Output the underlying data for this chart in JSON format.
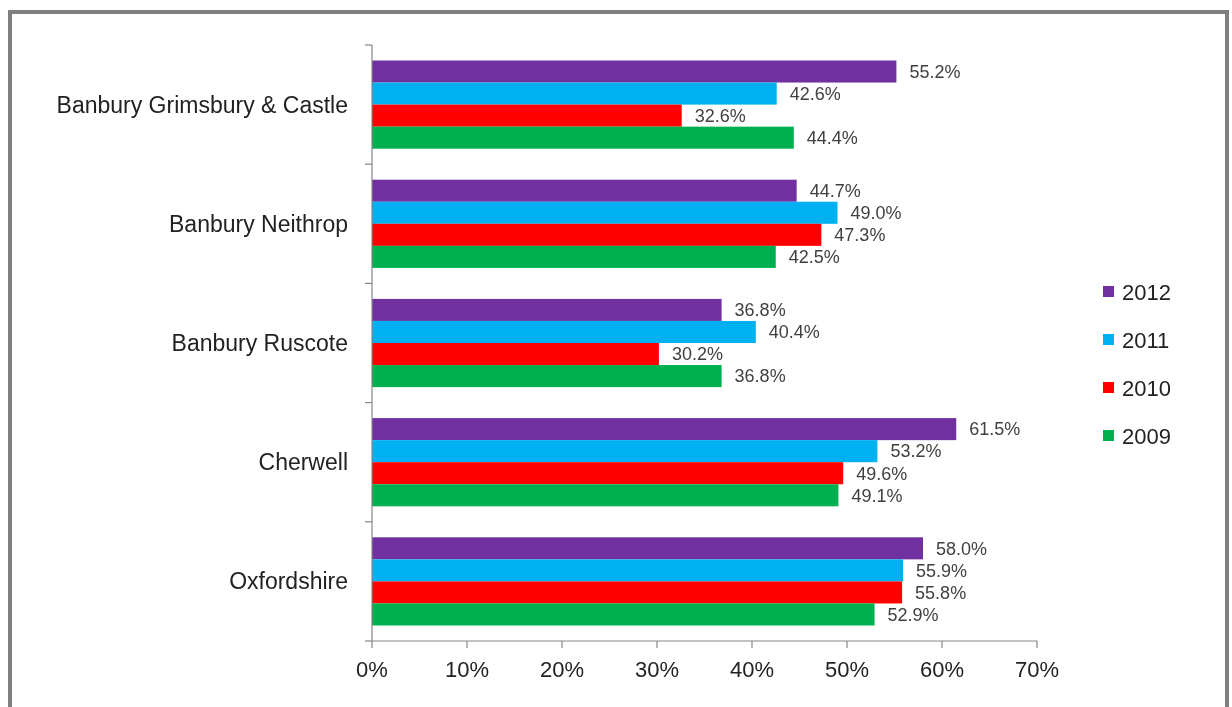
{
  "chart_data": {
    "type": "bar",
    "orientation": "horizontal",
    "categories": [
      "Banbury Grimsbury & Castle",
      "Banbury Neithrop",
      "Banbury Ruscote",
      "Cherwell",
      "Oxfordshire"
    ],
    "series": [
      {
        "name": "2012",
        "color": "#7030a0",
        "values": [
          55.2,
          44.7,
          36.8,
          61.5,
          58.0
        ],
        "value_labels": [
          "55.2%",
          "44.7%",
          "36.8%",
          "61.5%",
          "58.0%"
        ]
      },
      {
        "name": "2011",
        "color": "#00b0f0",
        "values": [
          42.6,
          49.0,
          40.4,
          53.2,
          55.9
        ],
        "value_labels": [
          "42.6%",
          "49.0%",
          "40.4%",
          "53.2%",
          "55.9%"
        ]
      },
      {
        "name": "2010",
        "color": "#ff0000",
        "values": [
          32.6,
          47.3,
          30.2,
          49.6,
          55.8
        ],
        "value_labels": [
          "32.6%",
          "47.3%",
          "30.2%",
          "49.6%",
          "55.8%"
        ]
      },
      {
        "name": "2009",
        "color": "#00b050",
        "values": [
          44.4,
          42.5,
          36.8,
          49.1,
          52.9
        ],
        "value_labels": [
          "44.4%",
          "42.5%",
          "36.8%",
          "49.1%",
          "52.9%"
        ]
      }
    ],
    "xlim": [
      0,
      70
    ],
    "xticks": [
      {
        "value": 0,
        "label": "0%"
      },
      {
        "value": 10,
        "label": "10%"
      },
      {
        "value": 20,
        "label": "20%"
      },
      {
        "value": 30,
        "label": "30%"
      },
      {
        "value": 40,
        "label": "40%"
      },
      {
        "value": 50,
        "label": "50%"
      },
      {
        "value": 60,
        "label": "60%"
      },
      {
        "value": 70,
        "label": "70%"
      }
    ],
    "legend": "right"
  }
}
